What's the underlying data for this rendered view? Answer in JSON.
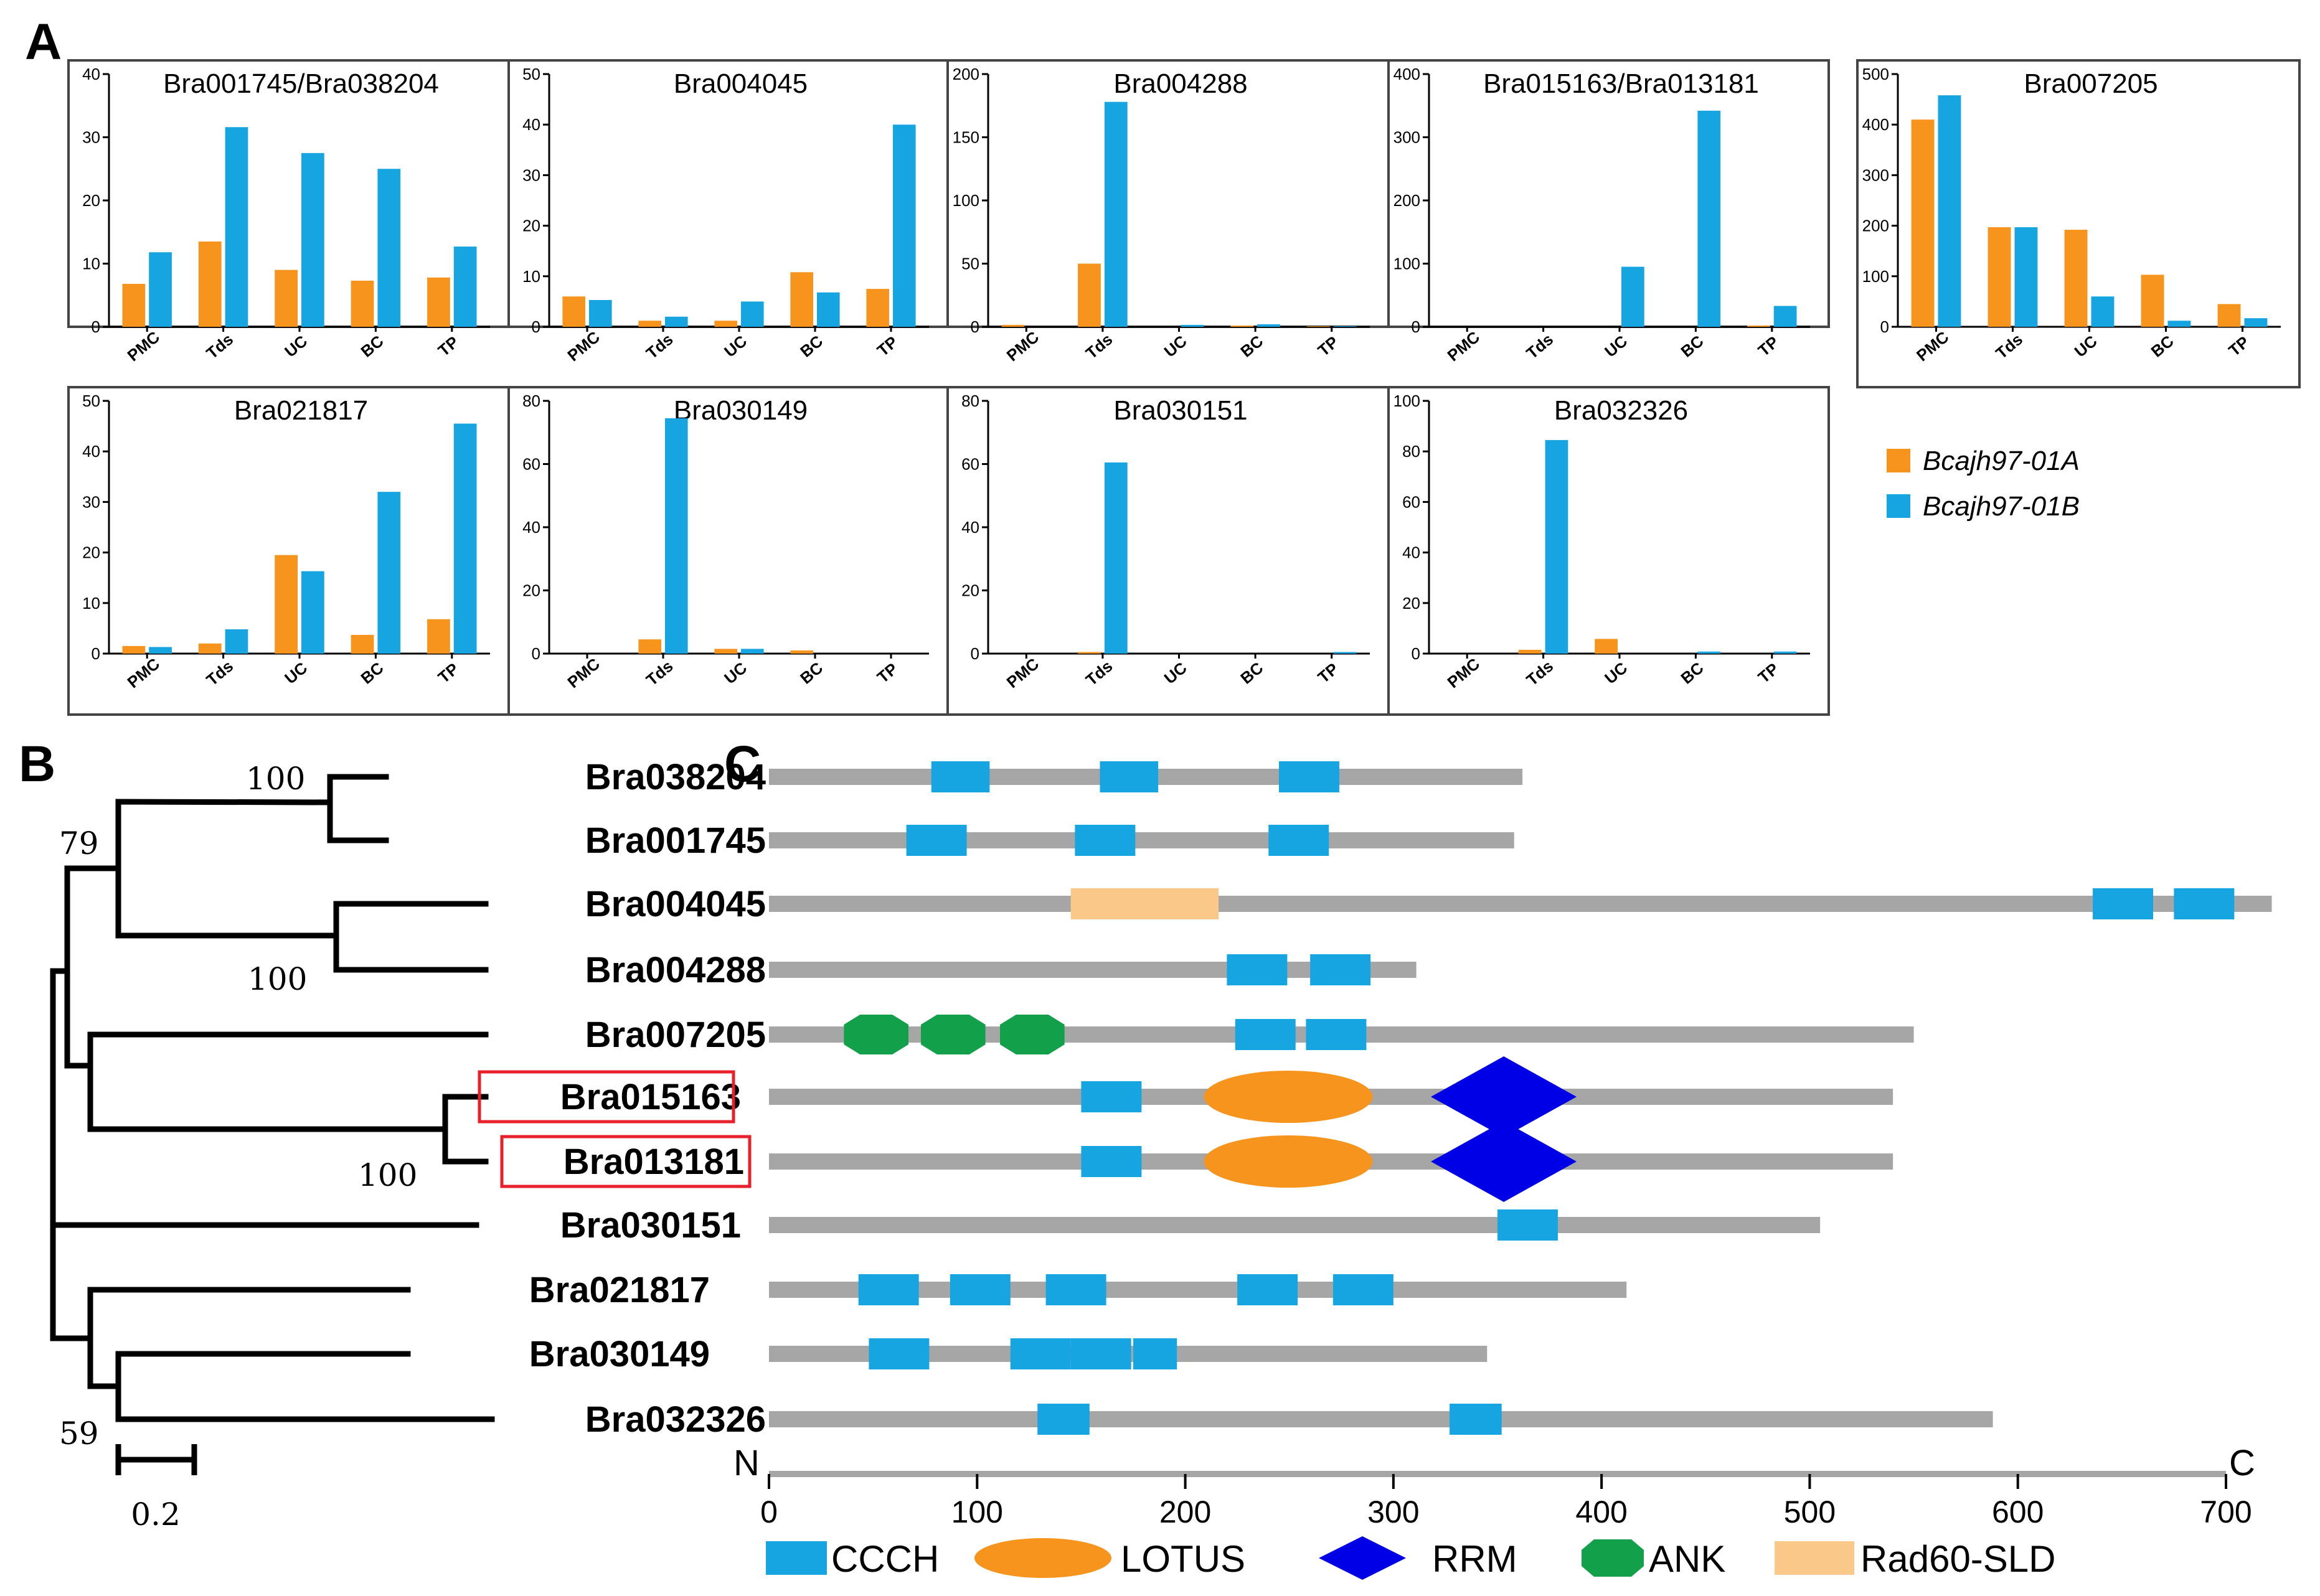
{
  "panel_labels": {
    "a": "A",
    "b": "B",
    "c": "C"
  },
  "colors": {
    "series_a": "#F7941D",
    "series_b": "#16A5E1",
    "protein_bar": "#A6A6A6",
    "CCCH": "#16A5E1",
    "LOTUS": "#F7941D",
    "RRM": "#0000E6",
    "ANK": "#13A04A",
    "Rad60-SLD": "#FAC98A",
    "highlight": "#E8202A"
  },
  "chart_data": [
    {
      "type": "bar",
      "panel": "A",
      "categories": [
        "PMC",
        "Tds",
        "UC",
        "BC",
        "TP"
      ],
      "legend": [
        "Bcajh97-01A",
        "Bcajh97-01B"
      ],
      "charts": [
        {
          "title": "Bra001745/Bra038204",
          "yticks": [
            "0",
            "10",
            "20",
            "30",
            "40"
          ],
          "ylim": [
            0,
            40
          ],
          "series": [
            {
              "name": "Bcajh97-01A",
              "values": [
                6.8,
                13.5,
                9,
                7.3,
                7.8
              ]
            },
            {
              "name": "Bcajh97-01B",
              "values": [
                11.8,
                31.6,
                27.5,
                25,
                12.7
              ]
            }
          ]
        },
        {
          "title": "Bra004045",
          "yticks": [
            "0",
            "10",
            "20",
            "30",
            "40",
            "50"
          ],
          "ylim": [
            0,
            50
          ],
          "series": [
            {
              "name": "Bcajh97-01A",
              "values": [
                6,
                1.2,
                1.2,
                10.8,
                7.5
              ]
            },
            {
              "name": "Bcajh97-01B",
              "values": [
                5.3,
                2,
                5,
                6.8,
                40
              ]
            }
          ]
        },
        {
          "title": "Bra004288",
          "yticks": [
            "0",
            "50",
            "100",
            "150",
            "200"
          ],
          "ylim": [
            0,
            200
          ],
          "series": [
            {
              "name": "Bcajh97-01A",
              "values": [
                1.5,
                50,
                0,
                1,
                0.5
              ]
            },
            {
              "name": "Bcajh97-01B",
              "values": [
                0,
                178,
                1.5,
                2,
                0.5
              ]
            }
          ]
        },
        {
          "title": "Bra015163/Bra013181",
          "yticks": [
            "0",
            "100",
            "200",
            "300",
            "400"
          ],
          "ylim": [
            0,
            400
          ],
          "series": [
            {
              "name": "Bcajh97-01A",
              "values": [
                0,
                0,
                0,
                0,
                2
              ]
            },
            {
              "name": "Bcajh97-01B",
              "values": [
                0,
                0,
                95,
                342,
                33
              ]
            }
          ]
        },
        {
          "title": "Bra007205",
          "yticks": [
            "0",
            "100",
            "200",
            "300",
            "400",
            "500"
          ],
          "ylim": [
            0,
            500
          ],
          "series": [
            {
              "name": "Bcajh97-01A",
              "values": [
                410,
                197,
                192,
                103,
                45
              ]
            },
            {
              "name": "Bcajh97-01B",
              "values": [
                458,
                197,
                60,
                12,
                17
              ]
            }
          ]
        },
        {
          "title": "Bra021817",
          "yticks": [
            "0",
            "10",
            "20",
            "30",
            "40",
            "50"
          ],
          "ylim": [
            0,
            50
          ],
          "series": [
            {
              "name": "Bcajh97-01A",
              "values": [
                1.5,
                2,
                19.5,
                3.7,
                6.8
              ]
            },
            {
              "name": "Bcajh97-01B",
              "values": [
                1.3,
                4.8,
                16.3,
                32,
                45.5
              ]
            }
          ]
        },
        {
          "title": "Bra030149",
          "yticks": [
            "0",
            "20",
            "40",
            "60",
            "80"
          ],
          "ylim": [
            0,
            80
          ],
          "series": [
            {
              "name": "Bcajh97-01A",
              "values": [
                0,
                4.5,
                1.5,
                1,
                0
              ]
            },
            {
              "name": "Bcajh97-01B",
              "values": [
                0,
                74.5,
                1.5,
                0,
                0
              ]
            }
          ]
        },
        {
          "title": "Bra030151",
          "yticks": [
            "0",
            "20",
            "40",
            "60",
            "80"
          ],
          "ylim": [
            0,
            80
          ],
          "series": [
            {
              "name": "Bcajh97-01A",
              "values": [
                0,
                0.5,
                0,
                0,
                0
              ]
            },
            {
              "name": "Bcajh97-01B",
              "values": [
                0,
                60.5,
                0,
                0,
                0.5
              ]
            }
          ]
        },
        {
          "title": "Bra032326",
          "yticks": [
            "0",
            "20",
            "40",
            "60",
            "80",
            "100"
          ],
          "ylim": [
            0,
            100
          ],
          "series": [
            {
              "name": "Bcajh97-01A",
              "values": [
                0,
                1.5,
                5.8,
                0,
                0
              ]
            },
            {
              "name": "Bcajh97-01B",
              "values": [
                0,
                84.5,
                0,
                0.8,
                0.8
              ]
            }
          ]
        }
      ]
    },
    {
      "type": "tree",
      "panel": "B",
      "leaves": [
        "Bra038204",
        "Bra001745",
        "Bra004045",
        "Bra004288",
        "Bra007205",
        "Bra015163",
        "Bra013181",
        "Bra030151",
        "Bra021817",
        "Bra030149",
        "Bra032326"
      ],
      "highlighted": [
        "Bra015163",
        "Bra013181"
      ],
      "bootstrap": [
        "100",
        "79",
        "100",
        "100",
        "59"
      ],
      "scale_label": "0.2"
    },
    {
      "type": "domain_map",
      "panel": "C",
      "axis": {
        "xlim": [
          0,
          700
        ],
        "ticks": [
          "0",
          "100",
          "200",
          "300",
          "400",
          "500",
          "600",
          "700"
        ],
        "start_label": "N",
        "end_label": "C"
      },
      "proteins": [
        {
          "name": "Bra038204",
          "length": 362,
          "domains": [
            {
              "type": "CCCH",
              "start": 78,
              "end": 106
            },
            {
              "type": "CCCH",
              "start": 159,
              "end": 187
            },
            {
              "type": "CCCH",
              "start": 245,
              "end": 274
            }
          ]
        },
        {
          "name": "Bra001745",
          "length": 358,
          "domains": [
            {
              "type": "CCCH",
              "start": 66,
              "end": 95
            },
            {
              "type": "CCCH",
              "start": 147,
              "end": 176
            },
            {
              "type": "CCCH",
              "start": 240,
              "end": 269
            }
          ]
        },
        {
          "name": "Bra004045",
          "length": 722,
          "domains": [
            {
              "type": "Rad60-SLD",
              "start": 145,
              "end": 216
            },
            {
              "type": "CCCH",
              "start": 636,
              "end": 665
            },
            {
              "type": "CCCH",
              "start": 675,
              "end": 704
            }
          ]
        },
        {
          "name": "Bra004288",
          "length": 311,
          "domains": [
            {
              "type": "CCCH",
              "start": 220,
              "end": 249
            },
            {
              "type": "CCCH",
              "start": 260,
              "end": 289
            }
          ]
        },
        {
          "name": "Bra007205",
          "length": 550,
          "domains": [
            {
              "type": "ANK",
              "start": 36,
              "end": 67
            },
            {
              "type": "ANK",
              "start": 73,
              "end": 104
            },
            {
              "type": "ANK",
              "start": 111,
              "end": 142
            },
            {
              "type": "CCCH",
              "start": 224,
              "end": 253
            },
            {
              "type": "CCCH",
              "start": 258,
              "end": 287
            }
          ]
        },
        {
          "name": "Bra015163",
          "length": 540,
          "domains": [
            {
              "type": "CCCH",
              "start": 150,
              "end": 179
            },
            {
              "type": "LOTUS",
              "start": 209,
              "end": 290
            },
            {
              "type": "RRM",
              "start": 318,
              "end": 388
            }
          ]
        },
        {
          "name": "Bra013181",
          "length": 540,
          "domains": [
            {
              "type": "CCCH",
              "start": 150,
              "end": 179
            },
            {
              "type": "LOTUS",
              "start": 209,
              "end": 290
            },
            {
              "type": "RRM",
              "start": 318,
              "end": 388
            }
          ]
        },
        {
          "name": "Bra030151",
          "length": 505,
          "domains": [
            {
              "type": "CCCH",
              "start": 350,
              "end": 379
            }
          ]
        },
        {
          "name": "Bra021817",
          "length": 412,
          "domains": [
            {
              "type": "CCCH",
              "start": 43,
              "end": 72
            },
            {
              "type": "CCCH",
              "start": 87,
              "end": 116
            },
            {
              "type": "CCCH",
              "start": 133,
              "end": 162
            },
            {
              "type": "CCCH",
              "start": 225,
              "end": 254
            },
            {
              "type": "CCCH",
              "start": 271,
              "end": 300
            }
          ]
        },
        {
          "name": "Bra030149",
          "length": 345,
          "domains": [
            {
              "type": "CCCH",
              "start": 48,
              "end": 77
            },
            {
              "type": "CCCH",
              "start": 116,
              "end": 145
            },
            {
              "type": "CCCH",
              "start": 145,
              "end": 174
            },
            {
              "type": "CCCH",
              "start": 175,
              "end": 196
            }
          ]
        },
        {
          "name": "Bra032326",
          "length": 588,
          "domains": [
            {
              "type": "CCCH",
              "start": 129,
              "end": 154
            },
            {
              "type": "CCCH",
              "start": 327,
              "end": 352
            }
          ]
        }
      ],
      "legend": [
        "CCCH",
        "LOTUS",
        "RRM",
        "ANK",
        "Rad60-SLD"
      ]
    }
  ]
}
